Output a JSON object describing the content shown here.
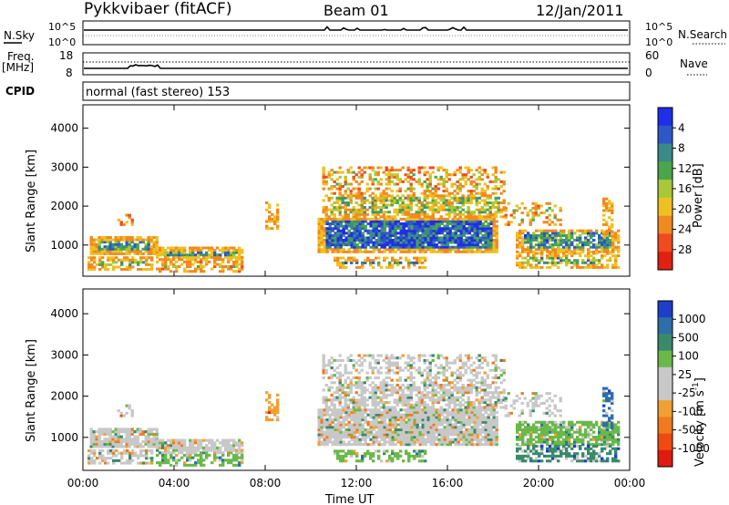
{
  "header": {
    "station": "Pykkvibaer (fitACF)",
    "beam": "Beam 01",
    "date": "12/Jan/2011"
  },
  "panel_nsky": {
    "left_label": "N.Sky",
    "left_ticks": [
      "10^5",
      "10^0"
    ],
    "right_ticks": [
      "10^5",
      "10^0"
    ],
    "right_label": "N.Search"
  },
  "panel_freq": {
    "left_label": "Freq.",
    "left_unit": "[MHz]",
    "left_ticks": [
      "18",
      "8"
    ],
    "right_ticks": [
      "60",
      "0"
    ],
    "right_label": "Nave"
  },
  "panel_cpid": {
    "label": "CPID",
    "text": "normal (fast stereo) 153"
  },
  "chart_data": [
    {
      "type": "heatmap",
      "name": "power",
      "ylabel": "Slant Range [km]",
      "ylim": [
        200,
        4600
      ],
      "y_ticks": [
        "1000",
        "2000",
        "3000",
        "4000"
      ],
      "x_ticks": [
        "00:00",
        "04:00",
        "08:00",
        "12:00",
        "16:00",
        "20:00",
        "00:00"
      ],
      "colorbar_label": "Power [dB]",
      "colorbar_ticks": [
        "4",
        "8",
        "12",
        "16",
        "20",
        "24",
        "28"
      ],
      "colorbar_colors": [
        "#1f2ee8",
        "#2e57c8",
        "#3a8a88",
        "#4aa64a",
        "#a8c83a",
        "#f0c020",
        "#f08a20",
        "#f04a20",
        "#e02010"
      ]
    },
    {
      "type": "heatmap",
      "name": "velocity",
      "ylabel": "Slant Range [km]",
      "ylim": [
        200,
        4600
      ],
      "y_ticks": [
        "1000",
        "2000",
        "3000",
        "4000"
      ],
      "x_ticks": [
        "00:00",
        "04:00",
        "08:00",
        "12:00",
        "16:00",
        "20:00",
        "00:00"
      ],
      "xlabel": "Time UT",
      "colorbar_label": "Velocity [m s",
      "colorbar_unit_sup": "-1",
      "colorbar_unit_close": "]",
      "colorbar_ticks": [
        "1000",
        "500",
        "100",
        "25",
        "-25",
        "-100",
        "-500",
        "-1000"
      ],
      "colorbar_colors": [
        "#1f3ec8",
        "#2e6ea8",
        "#3a8a6a",
        "#6ab84a",
        "#c8c8c8",
        "#c8c8c8",
        "#f0a030",
        "#f07a20",
        "#f04a10",
        "#e01a10"
      ]
    }
  ]
}
